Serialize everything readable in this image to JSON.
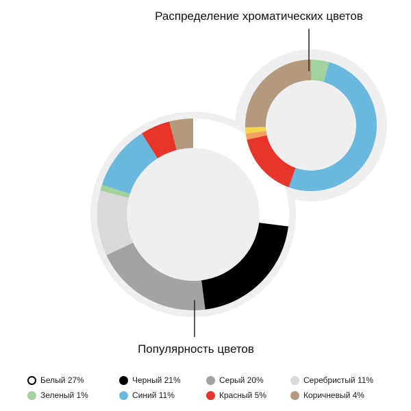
{
  "chart_data": [
    {
      "type": "pie",
      "title": "Популярность цветов",
      "series": [
        {
          "name": "Белый",
          "value": 27,
          "color": "#ffffff"
        },
        {
          "name": "Черный",
          "value": 21,
          "color": "#000000"
        },
        {
          "name": "Серый",
          "value": 20,
          "color": "#a3a3a3"
        },
        {
          "name": "Серебристый",
          "value": 11,
          "color": "#d9d9d9"
        },
        {
          "name": "Зеленый",
          "value": 1,
          "color": "#a3d39c"
        },
        {
          "name": "Синий",
          "value": 11,
          "color": "#6bb8de"
        },
        {
          "name": "Красный",
          "value": 5,
          "color": "#e8352b"
        },
        {
          "name": "Коричневый",
          "value": 4,
          "color": "#b39a7c"
        }
      ]
    },
    {
      "type": "pie",
      "title": "Распределение хроматических цветов",
      "series": [
        {
          "name": "Зеленый",
          "value": 4.5,
          "color": "#a3d39c"
        },
        {
          "name": "Синий",
          "value": 51,
          "color": "#6bb8de"
        },
        {
          "name": "Красный",
          "value": 16,
          "color": "#e8352b"
        },
        {
          "name": "",
          "value": 1.5,
          "color": "#f2a05c"
        },
        {
          "name": "",
          "value": 1.5,
          "color": "#f5d54a"
        },
        {
          "name": "Коричневый",
          "value": 25.5,
          "color": "#b39a7c"
        }
      ]
    }
  ],
  "labels": {
    "main": "Популярность цветов",
    "chromatic": "Распределение хроматических цветов"
  },
  "legend": {
    "rows": [
      [
        {
          "label": "Белый 27%",
          "color": "#ffffff"
        },
        {
          "label": "Черный 21%",
          "color": "#000000"
        },
        {
          "label": "Серый 20%",
          "color": "#a3a3a3"
        },
        {
          "label": "Серебристый 11%",
          "color": "#d9d9d9"
        }
      ],
      [
        {
          "label": "Зеленый 1%",
          "color": "#a3d39c"
        },
        {
          "label": "Синий 11%",
          "color": "#6bb8de"
        },
        {
          "label": "Красный 5%",
          "color": "#e8352b"
        },
        {
          "label": "Коричневый 4%",
          "color": "#b39a7c"
        }
      ]
    ]
  }
}
